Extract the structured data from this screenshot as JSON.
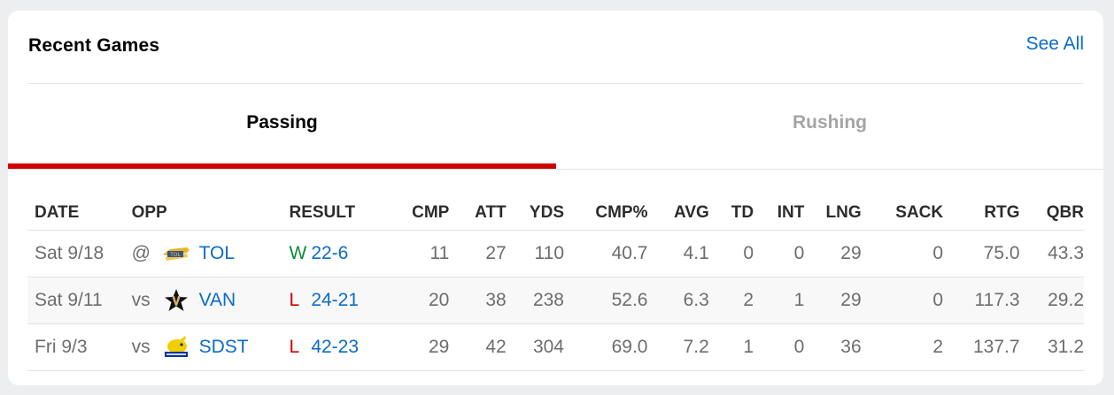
{
  "header": {
    "title": "Recent Games",
    "see_all": "See All"
  },
  "tabs": [
    {
      "label": "Passing",
      "active": true
    },
    {
      "label": "Rushing",
      "active": false
    }
  ],
  "columns": [
    "DATE",
    "OPP",
    "RESULT",
    "CMP",
    "ATT",
    "YDS",
    "CMP%",
    "AVG",
    "TD",
    "INT",
    "LNG",
    "SACK",
    "RTG",
    "QBR"
  ],
  "rows": [
    {
      "date": "Sat 9/18",
      "prefix": "@",
      "logo": "toledo-rockets-logo",
      "opp": "TOL",
      "wl": "W",
      "score": "22-6",
      "cmp": "11",
      "att": "27",
      "yds": "110",
      "cmp_pct": "40.7",
      "avg": "4.1",
      "td": "0",
      "int": "0",
      "lng": "29",
      "sack": "0",
      "rtg": "75.0",
      "qbr": "43.3"
    },
    {
      "date": "Sat 9/11",
      "prefix": "vs",
      "logo": "vanderbilt-star-v-logo",
      "opp": "VAN",
      "wl": "L",
      "score": "24-21",
      "cmp": "20",
      "att": "38",
      "yds": "238",
      "cmp_pct": "52.6",
      "avg": "6.3",
      "td": "2",
      "int": "1",
      "lng": "29",
      "sack": "0",
      "rtg": "117.3",
      "qbr": "29.2"
    },
    {
      "date": "Fri 9/3",
      "prefix": "vs",
      "logo": "south-dakota-state-jackrabbits-logo",
      "opp": "SDST",
      "wl": "L",
      "score": "42-23",
      "cmp": "29",
      "att": "42",
      "yds": "304",
      "cmp_pct": "69.0",
      "avg": "7.2",
      "td": "1",
      "int": "0",
      "lng": "36",
      "sack": "2",
      "rtg": "137.7",
      "qbr": "31.2"
    }
  ],
  "colors": {
    "link": "#0b6bc9",
    "win": "#0b8a3a",
    "loss": "#d00000",
    "active_tab_underline": "#d00000"
  }
}
